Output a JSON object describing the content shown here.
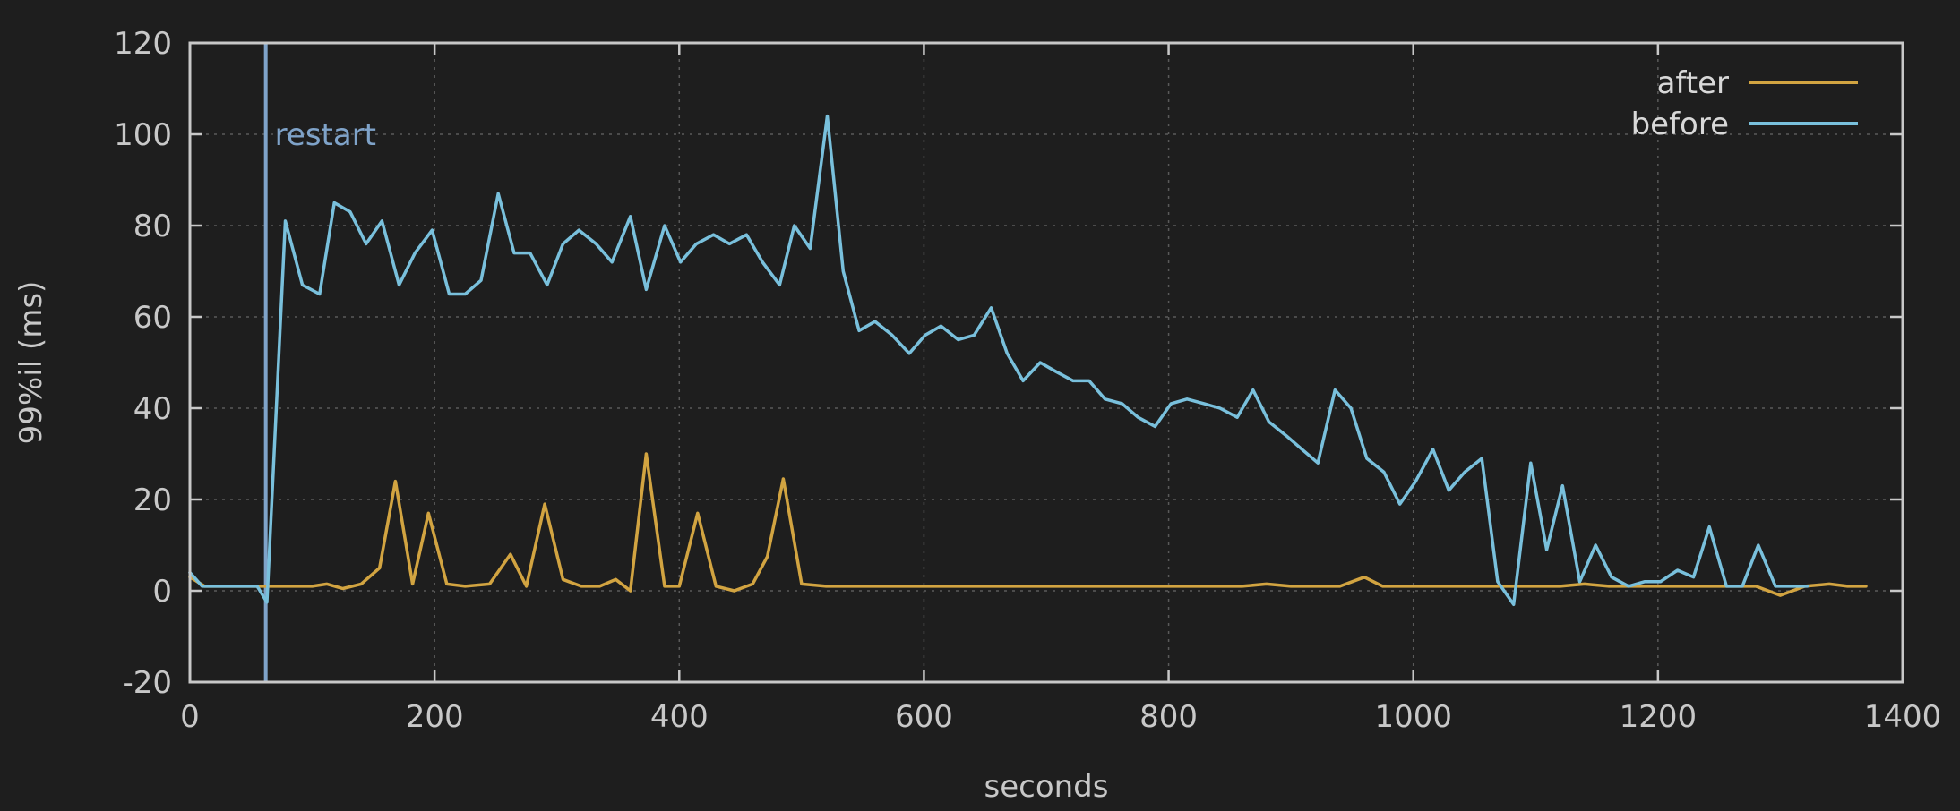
{
  "chart_data": {
    "type": "line",
    "title": "",
    "xlabel": "seconds",
    "ylabel": "99%il (ms)",
    "xlim": [
      0,
      1400
    ],
    "ylim": [
      -20,
      120
    ],
    "xticks": [
      0,
      200,
      400,
      600,
      800,
      1000,
      1200,
      1400
    ],
    "yticks": [
      -20,
      0,
      20,
      40,
      60,
      80,
      100,
      120
    ],
    "grid": true,
    "legend_position": "top-right",
    "annotations": [
      {
        "type": "vline",
        "x": 62,
        "label": "restart",
        "color": "#7fa3c9"
      }
    ],
    "series": [
      {
        "name": "after",
        "color": "#d2a441",
        "points": [
          [
            0,
            3
          ],
          [
            12,
            1
          ],
          [
            25,
            1
          ],
          [
            40,
            1
          ],
          [
            55,
            1
          ],
          [
            70,
            1
          ],
          [
            85,
            1
          ],
          [
            100,
            1
          ],
          [
            112,
            1.5
          ],
          [
            125,
            0.5
          ],
          [
            140,
            1.5
          ],
          [
            155,
            5
          ],
          [
            168,
            24
          ],
          [
            182,
            1.5
          ],
          [
            195,
            17
          ],
          [
            210,
            1.5
          ],
          [
            225,
            1
          ],
          [
            245,
            1.5
          ],
          [
            262,
            8
          ],
          [
            275,
            1
          ],
          [
            290,
            19
          ],
          [
            305,
            2.5
          ],
          [
            320,
            1
          ],
          [
            335,
            1
          ],
          [
            348,
            2.5
          ],
          [
            360,
            0
          ],
          [
            373,
            30
          ],
          [
            388,
            1
          ],
          [
            400,
            1
          ],
          [
            415,
            17
          ],
          [
            430,
            1
          ],
          [
            445,
            0
          ],
          [
            460,
            1.5
          ],
          [
            472,
            7.5
          ],
          [
            485,
            24.5
          ],
          [
            500,
            1.5
          ],
          [
            520,
            1
          ],
          [
            540,
            1
          ],
          [
            560,
            1
          ],
          [
            580,
            1
          ],
          [
            600,
            1
          ],
          [
            620,
            1
          ],
          [
            640,
            1
          ],
          [
            660,
            1
          ],
          [
            680,
            1
          ],
          [
            700,
            1
          ],
          [
            720,
            1
          ],
          [
            740,
            1
          ],
          [
            760,
            1
          ],
          [
            780,
            1
          ],
          [
            800,
            1
          ],
          [
            820,
            1
          ],
          [
            840,
            1
          ],
          [
            860,
            1
          ],
          [
            880,
            1.5
          ],
          [
            900,
            1
          ],
          [
            920,
            1
          ],
          [
            940,
            1
          ],
          [
            960,
            3
          ],
          [
            975,
            1
          ],
          [
            1000,
            1
          ],
          [
            1020,
            1
          ],
          [
            1040,
            1
          ],
          [
            1060,
            1
          ],
          [
            1080,
            1
          ],
          [
            1100,
            1
          ],
          [
            1120,
            1
          ],
          [
            1140,
            1.5
          ],
          [
            1160,
            1
          ],
          [
            1180,
            1
          ],
          [
            1200,
            1
          ],
          [
            1220,
            1
          ],
          [
            1240,
            1
          ],
          [
            1260,
            1
          ],
          [
            1280,
            1
          ],
          [
            1300,
            -1
          ],
          [
            1320,
            1
          ],
          [
            1340,
            1.5
          ],
          [
            1355,
            1
          ],
          [
            1370,
            1
          ]
        ]
      },
      {
        "name": "before",
        "color": "#79c0dc",
        "points": [
          [
            0,
            4
          ],
          [
            10,
            1
          ],
          [
            25,
            1
          ],
          [
            40,
            1
          ],
          [
            55,
            1
          ],
          [
            63,
            -2.5
          ],
          [
            78,
            81
          ],
          [
            92,
            67
          ],
          [
            106,
            65
          ],
          [
            118,
            85
          ],
          [
            131,
            83
          ],
          [
            144,
            76
          ],
          [
            157,
            81
          ],
          [
            171,
            67
          ],
          [
            184,
            74
          ],
          [
            198,
            79
          ],
          [
            212,
            65
          ],
          [
            225,
            65
          ],
          [
            238,
            68
          ],
          [
            252,
            87
          ],
          [
            265,
            74
          ],
          [
            278,
            74
          ],
          [
            292,
            67
          ],
          [
            305,
            76
          ],
          [
            318,
            79
          ],
          [
            332,
            76
          ],
          [
            345,
            72
          ],
          [
            360,
            82
          ],
          [
            373,
            66
          ],
          [
            388,
            80
          ],
          [
            401,
            72
          ],
          [
            414,
            76
          ],
          [
            428,
            78
          ],
          [
            441,
            76
          ],
          [
            455,
            78
          ],
          [
            468,
            72
          ],
          [
            482,
            67
          ],
          [
            494,
            80
          ],
          [
            507,
            75
          ],
          [
            521,
            104
          ],
          [
            534,
            70
          ],
          [
            547,
            57
          ],
          [
            560,
            59
          ],
          [
            574,
            56
          ],
          [
            588,
            52
          ],
          [
            601,
            56
          ],
          [
            614,
            58
          ],
          [
            628,
            55
          ],
          [
            641,
            56
          ],
          [
            655,
            62
          ],
          [
            668,
            52
          ],
          [
            681,
            46
          ],
          [
            695,
            50
          ],
          [
            708,
            48
          ],
          [
            722,
            46
          ],
          [
            735,
            46
          ],
          [
            748,
            42
          ],
          [
            762,
            41
          ],
          [
            775,
            38
          ],
          [
            789,
            36
          ],
          [
            802,
            41
          ],
          [
            815,
            42
          ],
          [
            829,
            41
          ],
          [
            842,
            40
          ],
          [
            856,
            38
          ],
          [
            869,
            44
          ],
          [
            882,
            37
          ],
          [
            896,
            34
          ],
          [
            909,
            31
          ],
          [
            922,
            28
          ],
          [
            936,
            44
          ],
          [
            949,
            40
          ],
          [
            962,
            29
          ],
          [
            976,
            26
          ],
          [
            989,
            19
          ],
          [
            1002,
            24
          ],
          [
            1016,
            31
          ],
          [
            1029,
            22
          ],
          [
            1042,
            26
          ],
          [
            1056,
            29
          ],
          [
            1069,
            2
          ],
          [
            1082,
            -3
          ],
          [
            1096,
            28
          ],
          [
            1109,
            9
          ],
          [
            1122,
            23
          ],
          [
            1136,
            2
          ],
          [
            1149,
            10
          ],
          [
            1162,
            3
          ],
          [
            1176,
            1
          ],
          [
            1189,
            2
          ],
          [
            1202,
            2
          ],
          [
            1216,
            4.5
          ],
          [
            1229,
            3
          ],
          [
            1242,
            14
          ],
          [
            1256,
            1
          ],
          [
            1269,
            1
          ],
          [
            1282,
            10
          ],
          [
            1296,
            1
          ],
          [
            1309,
            1
          ],
          [
            1322,
            1
          ]
        ]
      }
    ]
  }
}
